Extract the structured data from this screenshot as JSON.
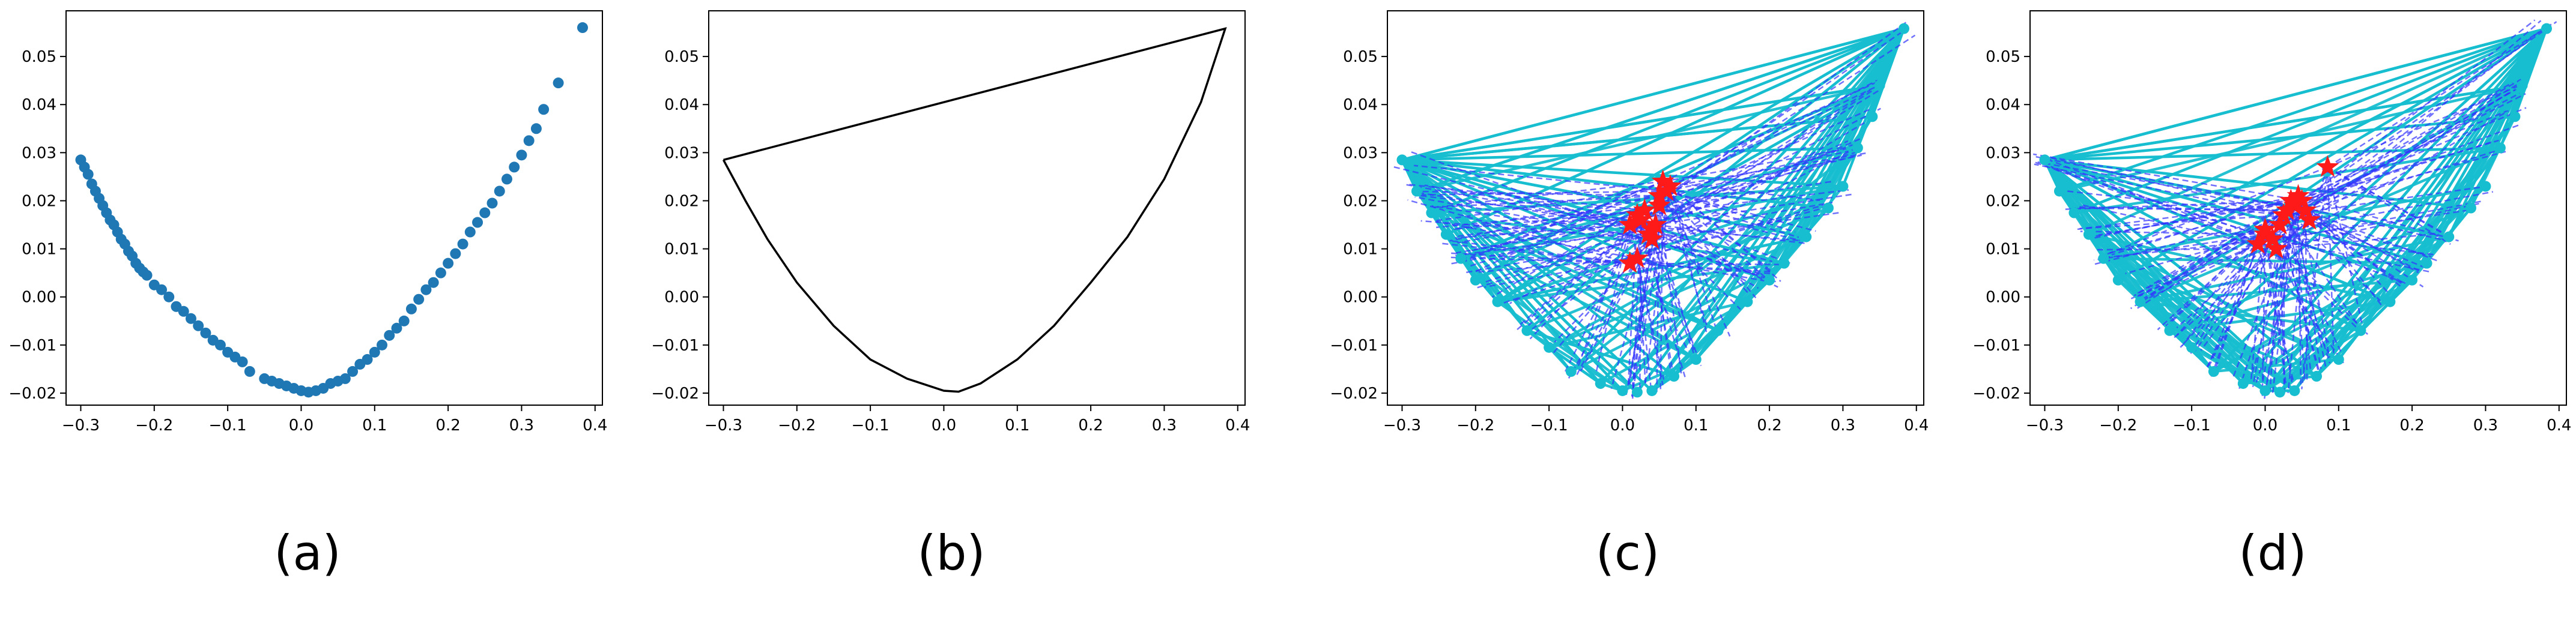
{
  "captions": [
    "(a)",
    "(b)",
    "(c)",
    "(d)"
  ],
  "colors": {
    "scatter": "#1f77b4",
    "hull": "#000000",
    "cyan": "#17becf",
    "blue_dash": "#3333ff",
    "star": "#ff1a1a",
    "axes": "#000000"
  },
  "chart_data": [
    {
      "type": "scatter",
      "title": "",
      "xlabel": "",
      "ylabel": "",
      "xlim": [
        -0.32,
        0.41
      ],
      "ylim": [
        -0.0225,
        0.0595
      ],
      "xticks": [
        -0.3,
        -0.2,
        -0.1,
        0.0,
        0.1,
        0.2,
        0.3,
        0.4
      ],
      "xtick_labels": [
        "−0.3",
        "−0.2",
        "−0.1",
        "0.0",
        "0.1",
        "0.2",
        "0.3",
        "0.4"
      ],
      "yticks": [
        -0.02,
        -0.01,
        0.0,
        0.01,
        0.02,
        0.03,
        0.04,
        0.05
      ],
      "ytick_labels": [
        "−0.02",
        "−0.01",
        "0.00",
        "0.01",
        "0.02",
        "0.03",
        "0.04",
        "0.05"
      ],
      "series": [
        {
          "x": [
            -0.3,
            -0.295,
            -0.29,
            -0.285,
            -0.28,
            -0.275,
            -0.27,
            -0.265,
            -0.26,
            -0.255,
            -0.25,
            -0.245,
            -0.24,
            -0.235,
            -0.23,
            -0.225,
            -0.22,
            -0.215,
            -0.21,
            -0.2,
            -0.19,
            -0.18,
            -0.17,
            -0.16,
            -0.15,
            -0.14,
            -0.13,
            -0.12,
            -0.11,
            -0.1,
            -0.09,
            -0.08,
            -0.07,
            -0.05,
            -0.04,
            -0.03,
            -0.02,
            -0.01,
            0.0,
            0.01,
            0.02,
            0.03,
            0.04,
            0.05,
            0.06,
            0.07,
            0.08,
            0.09,
            0.1,
            0.11,
            0.12,
            0.13,
            0.14,
            0.15,
            0.16,
            0.17,
            0.18,
            0.19,
            0.2,
            0.21,
            0.22,
            0.23,
            0.24,
            0.25,
            0.26,
            0.27,
            0.28,
            0.29,
            0.3,
            0.31,
            0.32,
            0.33,
            0.35,
            0.383
          ],
          "y": [
            0.0285,
            0.027,
            0.0255,
            0.0235,
            0.022,
            0.0205,
            0.019,
            0.0175,
            0.016,
            0.015,
            0.0135,
            0.012,
            0.011,
            0.0095,
            0.0085,
            0.007,
            0.006,
            0.0052,
            0.0045,
            0.0025,
            0.0015,
            0.0,
            -0.002,
            -0.003,
            -0.0045,
            -0.006,
            -0.0075,
            -0.009,
            -0.01,
            -0.0115,
            -0.0125,
            -0.0135,
            -0.0155,
            -0.017,
            -0.0175,
            -0.018,
            -0.0185,
            -0.019,
            -0.0195,
            -0.0198,
            -0.0195,
            -0.019,
            -0.018,
            -0.0175,
            -0.017,
            -0.0155,
            -0.014,
            -0.013,
            -0.0115,
            -0.01,
            -0.008,
            -0.0065,
            -0.005,
            -0.0025,
            -0.0005,
            0.0015,
            0.003,
            0.005,
            0.007,
            0.009,
            0.011,
            0.0135,
            0.0155,
            0.0175,
            0.0195,
            0.022,
            0.0245,
            0.027,
            0.0295,
            0.0325,
            0.035,
            0.039,
            0.0445,
            0.056
          ]
        }
      ]
    },
    {
      "type": "line",
      "title": "",
      "xlabel": "",
      "ylabel": "",
      "xlim": [
        -0.32,
        0.41
      ],
      "ylim": [
        -0.0225,
        0.0595
      ],
      "xticks": [
        -0.3,
        -0.2,
        -0.1,
        0.0,
        0.1,
        0.2,
        0.3,
        0.4
      ],
      "xtick_labels": [
        "−0.3",
        "−0.2",
        "−0.1",
        "0.0",
        "0.1",
        "0.2",
        "0.3",
        "0.4"
      ],
      "yticks": [
        -0.02,
        -0.01,
        0.0,
        0.01,
        0.02,
        0.03,
        0.04,
        0.05
      ],
      "ytick_labels": [
        "−0.02",
        "−0.01",
        "0.00",
        "0.01",
        "0.02",
        "0.03",
        "0.04",
        "0.05"
      ],
      "series": [
        {
          "x": [
            -0.3,
            -0.27,
            -0.24,
            -0.2,
            -0.15,
            -0.1,
            -0.05,
            0.0,
            0.02,
            0.05,
            0.1,
            0.15,
            0.2,
            0.25,
            0.3,
            0.35,
            0.383,
            -0.3
          ],
          "y": [
            0.0285,
            0.02,
            0.012,
            0.003,
            -0.006,
            -0.013,
            -0.017,
            -0.0195,
            -0.0197,
            -0.018,
            -0.013,
            -0.006,
            0.003,
            0.0125,
            0.0245,
            0.0405,
            0.0558,
            0.0285
          ]
        }
      ]
    },
    {
      "type": "line",
      "title": "",
      "xlabel": "",
      "ylabel": "",
      "xlim": [
        -0.32,
        0.41
      ],
      "ylim": [
        -0.0225,
        0.0595
      ],
      "xticks": [
        -0.3,
        -0.2,
        -0.1,
        0.0,
        0.1,
        0.2,
        0.3,
        0.4
      ],
      "xtick_labels": [
        "−0.3",
        "−0.2",
        "−0.1",
        "0.0",
        "0.1",
        "0.2",
        "0.3",
        "0.4"
      ],
      "yticks": [
        -0.02,
        -0.01,
        0.0,
        0.01,
        0.02,
        0.03,
        0.04,
        0.05
      ],
      "ytick_labels": [
        "−0.02",
        "−0.01",
        "0.00",
        "0.01",
        "0.02",
        "0.03",
        "0.04",
        "0.05"
      ],
      "hull_points": {
        "x": [
          -0.3,
          -0.28,
          -0.26,
          -0.24,
          -0.22,
          -0.2,
          -0.17,
          -0.13,
          -0.1,
          -0.07,
          -0.03,
          0.0,
          0.02,
          0.04,
          0.07,
          0.1,
          0.13,
          0.17,
          0.2,
          0.22,
          0.25,
          0.28,
          0.3,
          0.32,
          0.34,
          0.35,
          0.383
        ],
        "y": [
          0.0285,
          0.022,
          0.0175,
          0.013,
          0.008,
          0.0035,
          -0.001,
          -0.007,
          -0.0105,
          -0.0155,
          -0.018,
          -0.0195,
          -0.0198,
          -0.0195,
          -0.0165,
          -0.013,
          -0.007,
          -0.001,
          0.0035,
          0.007,
          0.0125,
          0.0185,
          0.023,
          0.031,
          0.0375,
          0.044,
          0.0558
        ]
      },
      "centroids": {
        "x": [
          0.01,
          0.02,
          0.025,
          0.03,
          0.035,
          0.04,
          0.045,
          0.05,
          0.055,
          0.06,
          0.065,
          0.02,
          0.01,
          0.04,
          0.05
        ],
        "y": [
          0.007,
          0.008,
          0.016,
          0.018,
          0.013,
          0.014,
          0.015,
          0.021,
          0.024,
          0.022,
          0.023,
          0.017,
          0.015,
          0.012,
          0.019
        ]
      },
      "seed": 3
    },
    {
      "type": "line",
      "title": "",
      "xlabel": "",
      "ylabel": "",
      "xlim": [
        -0.32,
        0.41
      ],
      "ylim": [
        -0.0225,
        0.0595
      ],
      "xticks": [
        -0.3,
        -0.2,
        -0.1,
        0.0,
        0.1,
        0.2,
        0.3,
        0.4
      ],
      "xtick_labels": [
        "−0.3",
        "−0.2",
        "−0.1",
        "0.0",
        "0.1",
        "0.2",
        "0.3",
        "0.4"
      ],
      "yticks": [
        -0.02,
        -0.01,
        0.0,
        0.01,
        0.02,
        0.03,
        0.04,
        0.05
      ],
      "ytick_labels": [
        "−0.02",
        "−0.01",
        "0.00",
        "0.01",
        "0.02",
        "0.03",
        "0.04",
        "0.05"
      ],
      "hull_points": {
        "x": [
          -0.3,
          -0.28,
          -0.26,
          -0.24,
          -0.22,
          -0.2,
          -0.17,
          -0.13,
          -0.1,
          -0.07,
          -0.03,
          0.0,
          0.02,
          0.04,
          0.07,
          0.1,
          0.13,
          0.17,
          0.2,
          0.22,
          0.25,
          0.28,
          0.3,
          0.32,
          0.34,
          0.35,
          0.383
        ],
        "y": [
          0.0285,
          0.022,
          0.0175,
          0.013,
          0.008,
          0.0035,
          -0.001,
          -0.007,
          -0.0105,
          -0.0155,
          -0.018,
          -0.0195,
          -0.0198,
          -0.0195,
          -0.0165,
          -0.013,
          -0.007,
          -0.001,
          0.0035,
          0.007,
          0.0125,
          0.0185,
          0.023,
          0.031,
          0.0375,
          0.044,
          0.0558
        ]
      },
      "centroids": {
        "x": [
          -0.01,
          0.0,
          0.01,
          0.02,
          0.025,
          0.03,
          0.035,
          0.04,
          0.045,
          0.05,
          0.055,
          0.06,
          0.085,
          0.0,
          0.015
        ],
        "y": [
          0.011,
          0.013,
          0.012,
          0.015,
          0.017,
          0.018,
          0.02,
          0.019,
          0.021,
          0.02,
          0.018,
          0.016,
          0.027,
          0.014,
          0.01
        ]
      },
      "seed": 7
    }
  ]
}
